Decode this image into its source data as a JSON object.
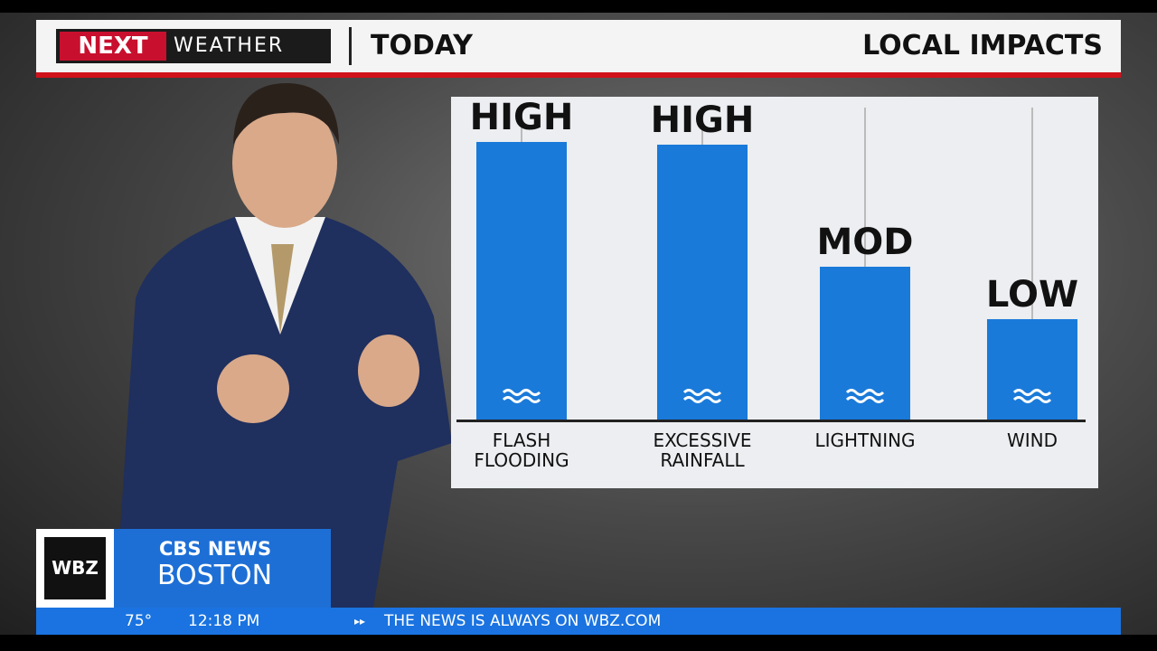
{
  "header": {
    "logo_next": "NEXT",
    "logo_weather": "WEATHER",
    "title": "TODAY",
    "section": "LOCAL IMPACTS"
  },
  "chart_data": {
    "type": "bar",
    "categories": [
      "FLASH\nFLOODING",
      "EXCESSIVE\nRAINFALL",
      "LIGHTNING",
      "WIND"
    ],
    "values": [
      100,
      99,
      55,
      36
    ],
    "value_labels": [
      "HIGH",
      "HIGH",
      "MOD",
      "LOW"
    ],
    "color": "#1a7ad9"
  },
  "lower_third": {
    "station": "WBZ",
    "network": "CBS NEWS",
    "city": "BOSTON"
  },
  "ticker": {
    "temperature": "75°",
    "time": "12:18 PM",
    "message": "THE NEWS IS ALWAYS ON WBZ.COM"
  }
}
